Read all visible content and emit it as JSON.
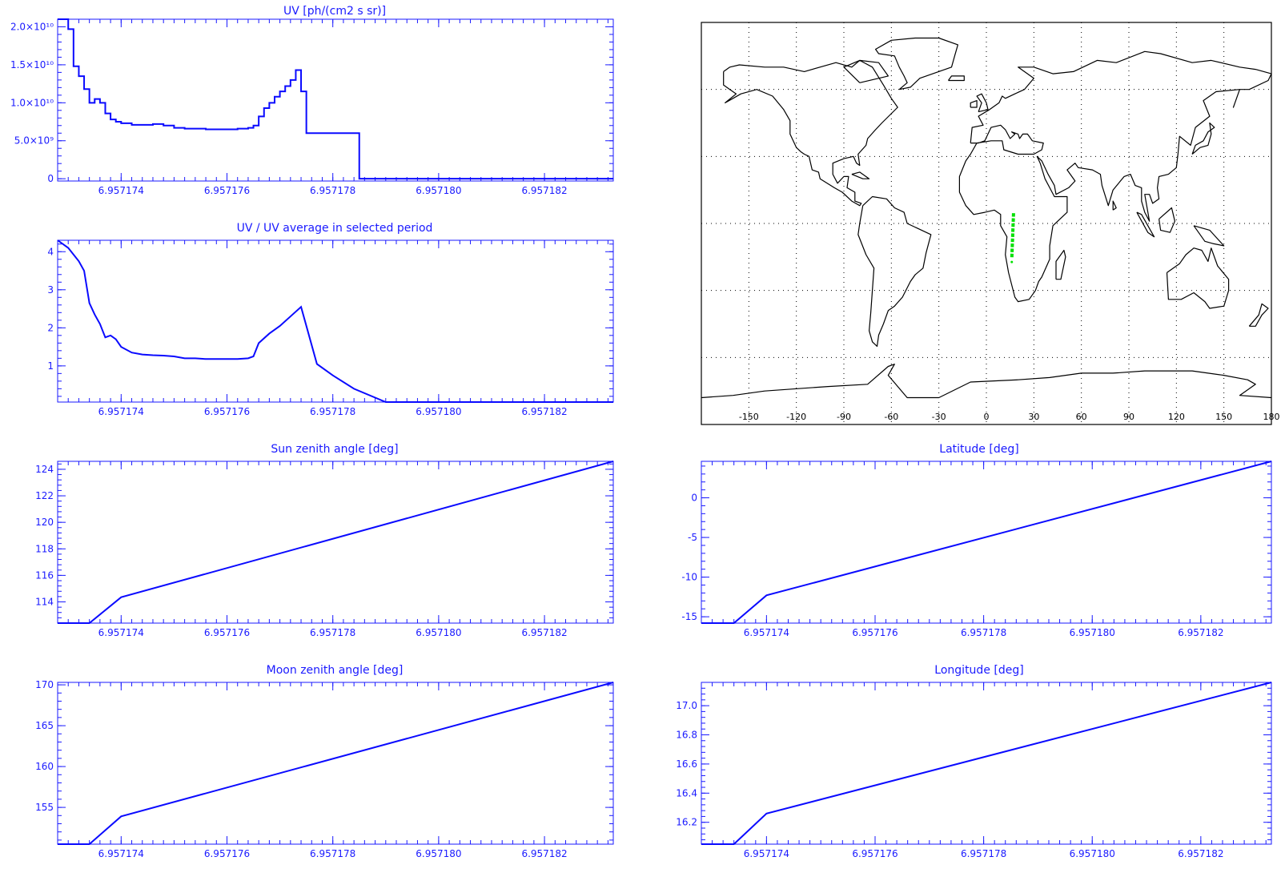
{
  "colors": {
    "axis": "#1a1aff",
    "series": "#0a0aff",
    "map_coast": "#000000",
    "map_grid": "#000000",
    "track": "#00e000",
    "background": "#ffffff"
  },
  "shared_x_ticks": [
    "6.957174",
    "6.957176",
    "6.957178",
    "6.957180",
    "6.957182"
  ],
  "chart_data": [
    {
      "id": "uv",
      "type": "line",
      "step": true,
      "title": "UV [ph/(cm2 s sr)]",
      "xlim": [
        6.9571728,
        6.9571833
      ],
      "ylim": [
        -300000000.0,
        21000000000.0
      ],
      "x_ticks": [
        6.957174,
        6.957176,
        6.957178,
        6.95718,
        6.957182
      ],
      "y_ticks": [
        0,
        5000000000.0,
        10000000000.0,
        15000000000.0,
        20000000000.0
      ],
      "y_tick_labels": [
        "0",
        "5.0×10⁹",
        "1.0×10¹⁰",
        "1.5×10¹⁰",
        "2.0×10¹⁰"
      ],
      "x": [
        6.9571728,
        6.9571732,
        6.9571736,
        6.957174,
        6.9571744,
        6.9571748,
        6.9571752,
        6.9571756,
        6.957176,
        6.9571764,
        6.9571768,
        6.9571772,
        6.9571776,
        6.957178,
        6.9571784,
        6.957179,
        6.9571833
      ],
      "values": [
        21000000000.0,
        20000000000.0,
        15000000000.0,
        12000000000.0,
        10000000000.0,
        8000000000.0,
        7500000000.0,
        7000000000.0,
        6500000000.0,
        6500000000.0,
        8000000000.0,
        10000000000.0,
        12500000000.0,
        14500000000.0,
        6000000000.0,
        0,
        0
      ],
      "series": [
        {
          "x": [
            6.9571728,
            6.9571729,
            6.957173,
            6.9571731,
            6.9571732,
            6.9571733,
            6.9571734,
            6.9571735,
            6.9571736,
            6.9571737,
            6.9571738,
            6.9571739,
            6.957174,
            6.9571742,
            6.9571744,
            6.9571746,
            6.9571748,
            6.957175,
            6.9571752,
            6.9571754,
            6.9571756,
            6.9571758,
            6.957176,
            6.9571762,
            6.9571764,
            6.9571765,
            6.9571766,
            6.9571767,
            6.9571768,
            6.9571769,
            6.957177,
            6.9571771,
            6.9571772,
            6.9571773,
            6.9571774,
            6.9571775,
            6.9571776,
            6.9571777,
            6.957178,
            6.9571784,
            6.9571785,
            6.957179,
            6.9571833
          ],
          "values": [
            21000000000.0,
            21000000000.0,
            19700000000.0,
            14800000000.0,
            13500000000.0,
            11800000000.0,
            10000000000.0,
            10500000000.0,
            10000000000.0,
            8600000000.0,
            7800000000.0,
            7500000000.0,
            7300000000.0,
            7100000000.0,
            7100000000.0,
            7200000000.0,
            7000000000.0,
            6700000000.0,
            6600000000.0,
            6600000000.0,
            6500000000.0,
            6500000000.0,
            6500000000.0,
            6600000000.0,
            6700000000.0,
            7000000000.0,
            8200000000.0,
            9300000000.0,
            10000000000.0,
            10800000000.0,
            11500000000.0,
            12200000000.0,
            13000000000.0,
            14300000000.0,
            11500000000.0,
            6000000000.0,
            6000000000.0,
            6000000000.0,
            6000000000.0,
            6000000000.0,
            0,
            0,
            0
          ]
        }
      ]
    },
    {
      "id": "uv_ratio",
      "type": "line",
      "title": "UV / UV average in selected period",
      "xlim": [
        6.9571728,
        6.9571833
      ],
      "ylim": [
        0.05,
        4.3
      ],
      "x_ticks": [
        6.957174,
        6.957176,
        6.957178,
        6.95718,
        6.957182
      ],
      "y_ticks": [
        1,
        2,
        3,
        4
      ],
      "y_tick_labels": [
        "1",
        "2",
        "3",
        "4"
      ],
      "series": [
        {
          "x": [
            6.9571728,
            6.957173,
            6.9571732,
            6.9571733,
            6.9571734,
            6.9571735,
            6.9571736,
            6.9571737,
            6.9571738,
            6.9571739,
            6.957174,
            6.9571742,
            6.9571744,
            6.9571746,
            6.9571748,
            6.957175,
            6.9571752,
            6.9571754,
            6.9571756,
            6.9571758,
            6.957176,
            6.9571762,
            6.9571764,
            6.9571765,
            6.9571766,
            6.9571768,
            6.957177,
            6.9571772,
            6.9571774,
            6.9571775,
            6.9571777,
            6.957178,
            6.9571784,
            6.957179,
            6.9571833
          ],
          "values": [
            4.3,
            4.1,
            3.75,
            3.5,
            2.65,
            2.35,
            2.1,
            1.75,
            1.8,
            1.7,
            1.5,
            1.35,
            1.3,
            1.28,
            1.27,
            1.25,
            1.2,
            1.2,
            1.18,
            1.18,
            1.18,
            1.18,
            1.2,
            1.25,
            1.6,
            1.85,
            2.05,
            2.3,
            2.55,
            2.05,
            1.05,
            0.75,
            0.4,
            0.05,
            0.05
          ]
        }
      ]
    },
    {
      "id": "sun_zenith",
      "type": "line",
      "title": "Sun zenith angle [deg]",
      "xlim": [
        6.9571728,
        6.9571833
      ],
      "ylim": [
        112.4,
        124.6
      ],
      "x_ticks": [
        6.957174,
        6.957176,
        6.957178,
        6.95718,
        6.957182
      ],
      "y_ticks": [
        114,
        116,
        118,
        120,
        122,
        124
      ],
      "y_tick_labels": [
        "114",
        "116",
        "118",
        "120",
        "122",
        "124"
      ],
      "series": [
        {
          "x": [
            6.9571728,
            6.9571734,
            6.957174,
            6.9571833
          ],
          "values": [
            112.4,
            112.4,
            114.35,
            124.6
          ]
        }
      ]
    },
    {
      "id": "latitude",
      "type": "line",
      "title": "Latitude [deg]",
      "xlim": [
        6.9571728,
        6.9571833
      ],
      "ylim": [
        -15.8,
        4.6
      ],
      "x_ticks": [
        6.957174,
        6.957176,
        6.957178,
        6.95718,
        6.957182
      ],
      "y_ticks": [
        -15,
        -10,
        -5,
        0
      ],
      "y_tick_labels": [
        "-15",
        "-10",
        "-5",
        "0"
      ],
      "series": [
        {
          "x": [
            6.9571728,
            6.9571734,
            6.957174,
            6.9571833
          ],
          "values": [
            -15.8,
            -15.8,
            -12.3,
            4.6
          ]
        }
      ]
    },
    {
      "id": "moon_zenith",
      "type": "line",
      "title": "Moon zenith angle [deg]",
      "xlim": [
        6.9571728,
        6.9571833
      ],
      "ylim": [
        150.5,
        170.3
      ],
      "x_ticks": [
        6.957174,
        6.957176,
        6.957178,
        6.95718,
        6.957182
      ],
      "y_ticks": [
        155,
        160,
        165,
        170
      ],
      "y_tick_labels": [
        "155",
        "160",
        "165",
        "170"
      ],
      "series": [
        {
          "x": [
            6.9571728,
            6.9571734,
            6.957174,
            6.9571833
          ],
          "values": [
            150.5,
            150.5,
            153.9,
            170.3
          ]
        }
      ]
    },
    {
      "id": "longitude",
      "type": "line",
      "title": "Longitude [deg]",
      "xlim": [
        6.9571728,
        6.9571833
      ],
      "ylim": [
        16.05,
        17.16
      ],
      "x_ticks": [
        6.957174,
        6.957176,
        6.957178,
        6.95718,
        6.957182
      ],
      "y_ticks": [
        16.2,
        16.4,
        16.6,
        16.8,
        17.0
      ],
      "y_tick_labels": [
        "16.2",
        "16.4",
        "16.6",
        "16.8",
        "17.0"
      ],
      "series": [
        {
          "x": [
            6.9571728,
            6.9571734,
            6.957174,
            6.9571833
          ],
          "values": [
            16.05,
            16.05,
            16.26,
            17.16
          ]
        }
      ]
    },
    {
      "id": "world_map",
      "type": "map",
      "x_tick_labels": [
        "-150",
        "-120",
        "-90",
        "-60",
        "-30",
        "0",
        "30",
        "60",
        "90",
        "120",
        "150",
        "180"
      ],
      "grid": true,
      "track": {
        "lon": [
          17.16,
          16.05
        ],
        "lat": [
          4.6,
          -15.8
        ]
      }
    }
  ]
}
